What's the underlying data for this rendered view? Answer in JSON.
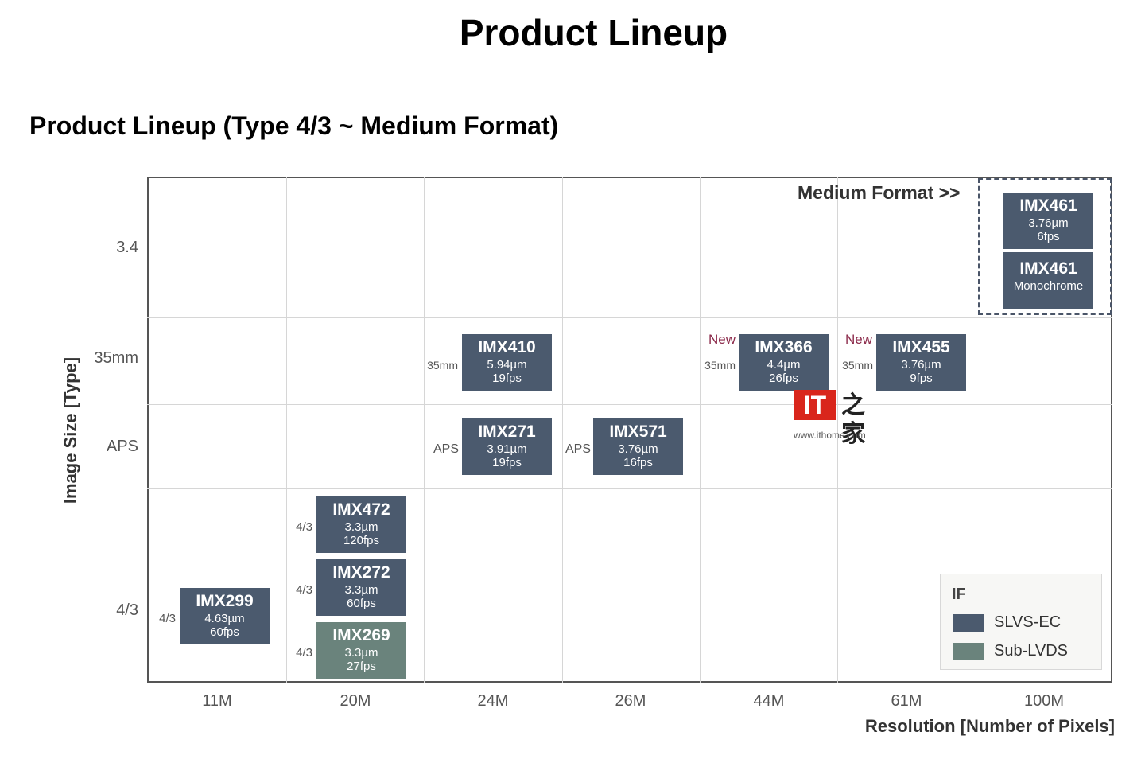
{
  "header": {
    "title": "Product Lineup",
    "subtitle": "Product Lineup (Type 4/3 ~ Medium Format)"
  },
  "chart_data": {
    "type": "table",
    "title": "Product Lineup (Type 4/3 ~ Medium Format)",
    "xlabel": "Resolution [Number of Pixels]",
    "ylabel": "Image Size [Type]",
    "x_categories": [
      "11M",
      "20M",
      "24M",
      "26M",
      "44M",
      "61M",
      "100M"
    ],
    "y_categories": [
      "3.4",
      "35mm",
      "APS",
      "4/3"
    ],
    "medium_format_label": "Medium Format >>",
    "sensors": [
      {
        "name": "IMX461",
        "specs": [
          "3.76µm",
          "6fps"
        ],
        "resolution": "100M",
        "size": "3.4",
        "interface": "SLVS-EC"
      },
      {
        "name": "IMX461",
        "specs": [
          "Monochrome"
        ],
        "resolution": "100M",
        "size": "3.4",
        "interface": "SLVS-EC"
      },
      {
        "name": "IMX410",
        "specs": [
          "5.94µm",
          "19fps"
        ],
        "resolution": "24M",
        "size": "35mm",
        "size_tag": "35mm",
        "interface": "SLVS-EC"
      },
      {
        "name": "IMX366",
        "specs": [
          "4.4µm",
          "26fps"
        ],
        "resolution": "44M",
        "size": "35mm",
        "size_tag": "35mm",
        "new_tag": "New",
        "interface": "SLVS-EC"
      },
      {
        "name": "IMX455",
        "specs": [
          "3.76µm",
          "9fps"
        ],
        "resolution": "61M",
        "size": "35mm",
        "size_tag": "35mm",
        "new_tag": "New",
        "interface": "SLVS-EC"
      },
      {
        "name": "IMX271",
        "specs": [
          "3.91µm",
          "19fps"
        ],
        "resolution": "24M",
        "size": "APS",
        "size_tag": "APS",
        "interface": "SLVS-EC"
      },
      {
        "name": "IMX571",
        "specs": [
          "3.76µm",
          "16fps"
        ],
        "resolution": "26M",
        "size": "APS",
        "size_tag": "APS",
        "interface": "SLVS-EC"
      },
      {
        "name": "IMX472",
        "specs": [
          "3.3µm",
          "120fps"
        ],
        "resolution": "20M",
        "size": "4/3",
        "size_tag": "4/3",
        "interface": "SLVS-EC"
      },
      {
        "name": "IMX272",
        "specs": [
          "3.3µm",
          "60fps"
        ],
        "resolution": "20M",
        "size": "4/3",
        "size_tag": "4/3",
        "interface": "SLVS-EC"
      },
      {
        "name": "IMX269",
        "specs": [
          "3.3µm",
          "27fps"
        ],
        "resolution": "20M",
        "size": "4/3",
        "size_tag": "4/3",
        "interface": "Sub-LVDS"
      },
      {
        "name": "IMX299",
        "specs": [
          "4.63µm",
          "60fps"
        ],
        "resolution": "11M",
        "size": "4/3",
        "size_tag": "4/3",
        "interface": "SLVS-EC"
      }
    ],
    "legend": {
      "title": "IF",
      "items": [
        {
          "label": "SLVS-EC",
          "color": "#4b5a6e"
        },
        {
          "label": "Sub-LVDS",
          "color": "#6a837c"
        }
      ]
    }
  },
  "watermark": {
    "logo_text": "IT之家",
    "url": "www.ithome.com"
  }
}
